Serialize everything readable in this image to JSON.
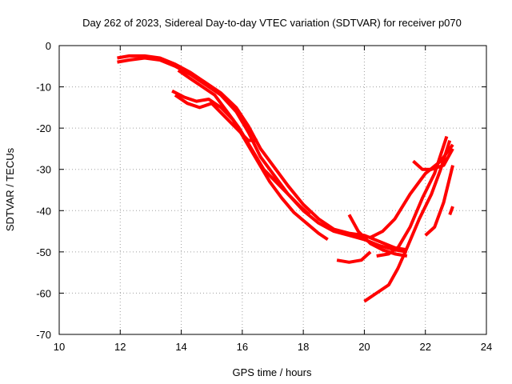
{
  "chart_data": {
    "type": "line",
    "title": "Day 262 of 2023, Sidereal Day-to-day VTEC variation (SDTVAR) for receiver p070",
    "xlabel": "GPS time / hours",
    "ylabel": "SDTVAR / TECUs",
    "xlim": [
      10,
      24
    ],
    "ylim": [
      -70,
      0
    ],
    "xticks": [
      10,
      12,
      14,
      16,
      18,
      20,
      22,
      24
    ],
    "yticks": [
      0,
      -10,
      -20,
      -30,
      -40,
      -50,
      -60,
      -70
    ],
    "grid": true,
    "color": "#ff0000",
    "series": [
      {
        "name": "track-1",
        "x": [
          11.9,
          12.3,
          12.8,
          13.3,
          13.8,
          14.3,
          14.8,
          15.3,
          15.8,
          16.2,
          16.6,
          17.0,
          17.5,
          18.0,
          18.5,
          19.0,
          19.5,
          20.0,
          20.5,
          21.0,
          21.4
        ],
        "y": [
          -4,
          -3.5,
          -3,
          -3.5,
          -5,
          -7,
          -9.5,
          -12,
          -16,
          -21,
          -27,
          -31,
          -36,
          -40,
          -43,
          -45,
          -46,
          -47,
          -48.5,
          -49.5,
          -50
        ]
      },
      {
        "name": "track-2",
        "x": [
          11.9,
          12.3,
          12.8,
          13.3,
          13.8,
          14.3,
          14.8,
          15.3,
          15.8,
          16.2,
          16.6,
          17.0,
          17.5,
          18.0,
          18.5,
          19.0,
          19.5,
          20.0,
          20.5,
          21.0,
          21.4
        ],
        "y": [
          -3,
          -2.5,
          -2.5,
          -3,
          -4.5,
          -6.5,
          -9,
          -11.5,
          -15,
          -19.5,
          -25,
          -29,
          -34,
          -38.5,
          -42,
          -44.5,
          -45.5,
          -46,
          -47.5,
          -49,
          -49.5
        ]
      },
      {
        "name": "track-3",
        "x": [
          13.7,
          14.1,
          14.5,
          14.9,
          15.3,
          15.7,
          16.1,
          16.5,
          16.9,
          17.3,
          17.7,
          18.1,
          18.5,
          18.8
        ],
        "y": [
          -11,
          -12.5,
          -13.5,
          -13,
          -15,
          -18,
          -23,
          -28,
          -33,
          -37,
          -40.5,
          -43,
          -45.5,
          -47
        ]
      },
      {
        "name": "track-4",
        "x": [
          13.8,
          14.2,
          14.6,
          15.0,
          15.4,
          15.8,
          16.2,
          16.5
        ],
        "y": [
          -12,
          -14,
          -15,
          -14,
          -17,
          -20,
          -23,
          -23
        ]
      },
      {
        "name": "track-5",
        "x": [
          13.9,
          14.3,
          14.7,
          15.1,
          15.5,
          15.9,
          16.3,
          16.7,
          17.1,
          17.5,
          17.9,
          18.2
        ],
        "y": [
          -6,
          -8,
          -10,
          -12,
          -16,
          -20,
          -25,
          -30,
          -33,
          -36,
          -39,
          -41
        ]
      },
      {
        "name": "track-6",
        "x": [
          19.1,
          19.5,
          19.9,
          20.2
        ],
        "y": [
          -52,
          -52.5,
          -52,
          -50
        ]
      },
      {
        "name": "track-7",
        "x": [
          19.4,
          19.8,
          20.2,
          20.6,
          21.0,
          21.5,
          22.0,
          22.5,
          22.9
        ],
        "y": [
          -45.5,
          -46,
          -46.5,
          -45,
          -42,
          -36,
          -31,
          -28,
          -24
        ]
      },
      {
        "name": "track-8",
        "x": [
          19.5,
          19.8,
          20.2,
          20.6,
          21.0,
          21.4
        ],
        "y": [
          -41,
          -45,
          -48,
          -49.5,
          -50.5,
          -51
        ]
      },
      {
        "name": "track-9",
        "x": [
          20.0,
          20.4,
          20.8,
          21.1,
          21.4,
          21.8,
          22.2,
          22.5,
          22.8
        ],
        "y": [
          -62,
          -60,
          -58,
          -54,
          -49,
          -42,
          -36,
          -30,
          -23
        ]
      },
      {
        "name": "track-10",
        "x": [
          20.4,
          20.8,
          21.1,
          21.5,
          21.9,
          22.3,
          22.7
        ],
        "y": [
          -51,
          -50.5,
          -49,
          -44,
          -37,
          -31,
          -22
        ]
      },
      {
        "name": "track-11",
        "x": [
          21.6,
          21.9,
          22.2,
          22.6,
          22.9
        ],
        "y": [
          -28,
          -30,
          -30,
          -29,
          -25
        ]
      },
      {
        "name": "track-12",
        "x": [
          22.0,
          22.3,
          22.6,
          22.9
        ],
        "y": [
          -46,
          -44,
          -38,
          -29
        ]
      },
      {
        "name": "track-13",
        "x": [
          22.8,
          22.9
        ],
        "y": [
          -41,
          -39
        ]
      }
    ]
  }
}
